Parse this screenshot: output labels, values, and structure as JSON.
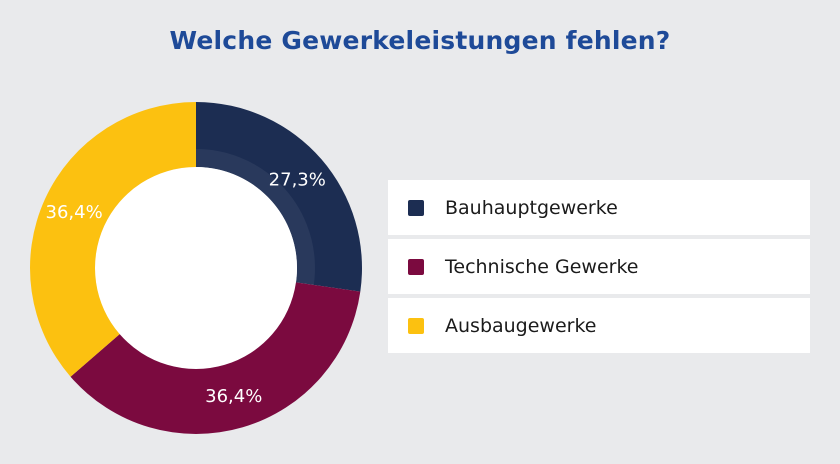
{
  "title": "Welche Gewerkeleistungen fehlen?",
  "colors": {
    "title": "#1e4a98",
    "background": "#e9eaec"
  },
  "chart_data": {
    "type": "pie",
    "title": "Welche Gewerkeleistungen fehlen?",
    "donut": true,
    "legend_position": "right",
    "slices": [
      {
        "name": "Bauhauptgewerke",
        "value": 27.3,
        "value_label": "27,3%",
        "color": "#1c2d52"
      },
      {
        "name": "Technische Gewerke",
        "value": 36.4,
        "value_label": "36,4%",
        "color": "#7b0a3f"
      },
      {
        "name": "Ausbaugewerke",
        "value": 36.4,
        "value_label": "36,4%",
        "color": "#fcc110"
      }
    ]
  }
}
